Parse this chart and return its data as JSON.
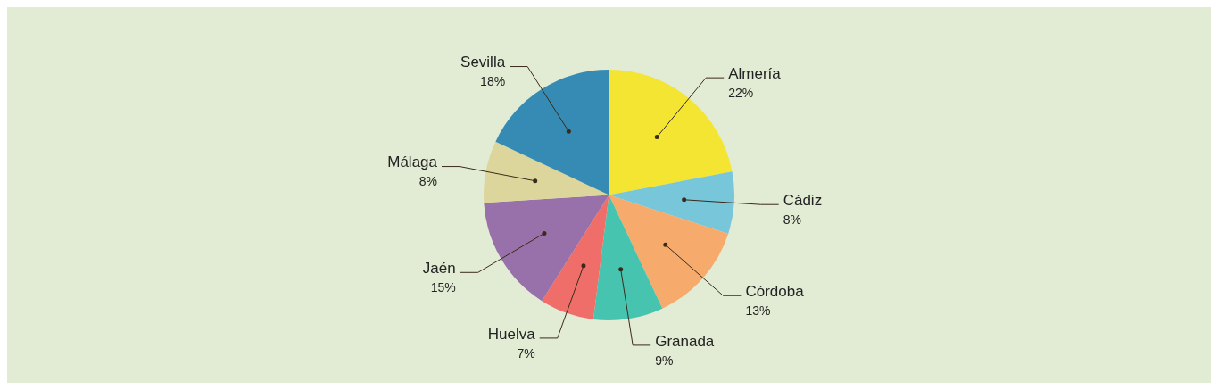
{
  "chart_data": {
    "type": "pie",
    "categories": [
      "Almería",
      "Cádiz",
      "Córdoba",
      "Granada",
      "Huelva",
      "Jaén",
      "Málaga",
      "Sevilla"
    ],
    "values": [
      22,
      8,
      13,
      9,
      7,
      15,
      8,
      18
    ],
    "value_labels": [
      "22%",
      "8%",
      "13%",
      "9%",
      "7%",
      "15%",
      "8%",
      "18%"
    ],
    "colors": [
      "#f3e532",
      "#77c6da",
      "#f6ab6c",
      "#46c4b0",
      "#f06e6a",
      "#9871aa",
      "#ddd69c",
      "#358bb3"
    ],
    "legend": false
  }
}
